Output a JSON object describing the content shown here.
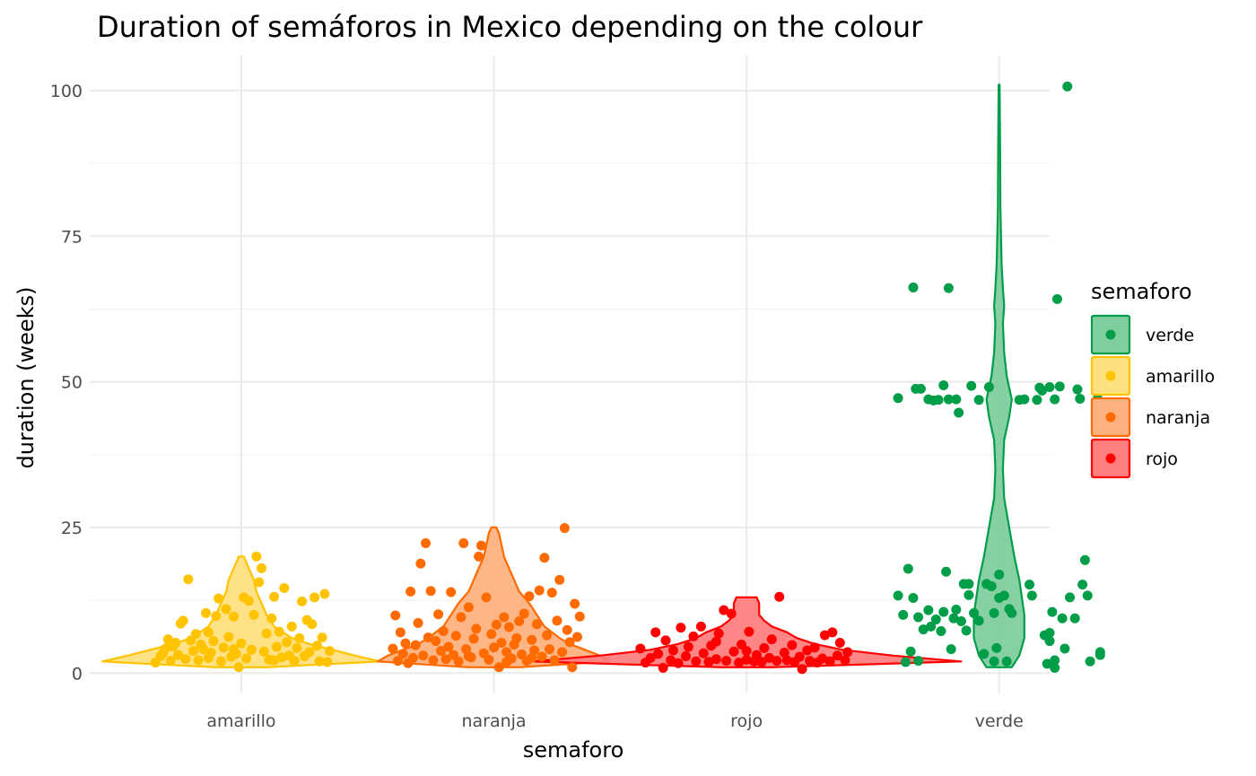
{
  "chart_data": {
    "type": "violin",
    "title": "Duration of semáforos in Mexico depending on the colour",
    "xlabel": "semaforo",
    "ylabel": "duration (weeks)",
    "categories": [
      "amarillo",
      "naranja",
      "rojo",
      "verde"
    ],
    "ylim": [
      -3.5,
      106
    ],
    "yticks": [
      0,
      25,
      50,
      75,
      100
    ],
    "grid": true,
    "legend": {
      "title": "semaforo",
      "placement": "right",
      "items": [
        "verde",
        "amarillo",
        "naranja",
        "rojo"
      ]
    },
    "colors": {
      "amarillo": "#FFC300",
      "naranja": "#FF6B00",
      "rojo": "#FF0000",
      "verde": "#009E49"
    },
    "fill_colors": {
      "amarillo": "#FFE07F",
      "naranja": "#FFB27F",
      "rojo": "#FF7F7F",
      "verde": "#7FCE9F"
    },
    "violins": {
      "amarillo": {
        "y": [
          1,
          2,
          3,
          4,
          5,
          6,
          8,
          10,
          12,
          14,
          16,
          18,
          20
        ],
        "halfwidth": [
          0.1,
          0.55,
          0.45,
          0.36,
          0.27,
          0.2,
          0.13,
          0.1,
          0.08,
          0.06,
          0.05,
          0.03,
          0.01
        ]
      },
      "naranja": {
        "y": [
          1,
          2,
          3,
          4,
          5,
          6,
          8,
          10,
          12,
          14,
          16,
          18,
          20,
          22,
          24,
          25
        ],
        "halfwidth": [
          0.1,
          0.46,
          0.42,
          0.36,
          0.3,
          0.26,
          0.2,
          0.17,
          0.14,
          0.1,
          0.08,
          0.06,
          0.04,
          0.03,
          0.02,
          0.01
        ]
      },
      "rojo": {
        "y": [
          1,
          2,
          3,
          4,
          5,
          6,
          7,
          8,
          9,
          10,
          11,
          12,
          13
        ],
        "halfwidth": [
          0.1,
          0.85,
          0.58,
          0.38,
          0.27,
          0.2,
          0.16,
          0.1,
          0.07,
          0.05,
          0.05,
          0.05,
          0.04
        ]
      },
      "verde": {
        "y": [
          1,
          3,
          6,
          10,
          13,
          16,
          20,
          25,
          30,
          35,
          40,
          44,
          47,
          49,
          51,
          55,
          60,
          63,
          66,
          70,
          80,
          90,
          101
        ],
        "halfwidth": [
          0.05,
          0.08,
          0.1,
          0.1,
          0.09,
          0.08,
          0.06,
          0.04,
          0.02,
          0.015,
          0.02,
          0.04,
          0.05,
          0.04,
          0.03,
          0.02,
          0.015,
          0.02,
          0.015,
          0.01,
          0.005,
          0.004,
          0.002
        ]
      }
    },
    "points": {
      "amarillo": [
        [
          0.66,
          1.8
        ],
        [
          0.68,
          2.9
        ],
        [
          0.69,
          3.4
        ],
        [
          0.7,
          4.2
        ],
        [
          0.71,
          5.8
        ],
        [
          0.72,
          2.1
        ],
        [
          0.73,
          4.6
        ],
        [
          0.74,
          5.2
        ],
        [
          0.75,
          3.1
        ],
        [
          0.76,
          8.5
        ],
        [
          0.77,
          9.0
        ],
        [
          0.78,
          2.4
        ],
        [
          0.79,
          16.1
        ],
        [
          0.8,
          5.6
        ],
        [
          0.81,
          3.8
        ],
        [
          0.82,
          6.7
        ],
        [
          0.83,
          2.2
        ],
        [
          0.84,
          4.9
        ],
        [
          0.85,
          4.1
        ],
        [
          0.86,
          10.3
        ],
        [
          0.87,
          2.6
        ],
        [
          0.88,
          3.5
        ],
        [
          0.89,
          5.5
        ],
        [
          0.9,
          9.8
        ],
        [
          0.91,
          12.8
        ],
        [
          0.92,
          2.0
        ],
        [
          0.93,
          4.4
        ],
        [
          0.94,
          11.0
        ],
        [
          0.95,
          6.2
        ],
        [
          0.96,
          2.8
        ],
        [
          0.97,
          9.7
        ],
        [
          0.98,
          3.3
        ],
        [
          0.99,
          1.0
        ],
        [
          1.0,
          5.1
        ],
        [
          1.01,
          13.0
        ],
        [
          1.02,
          2.5
        ],
        [
          1.03,
          12.4
        ],
        [
          1.04,
          4.0
        ],
        [
          1.05,
          10.0
        ],
        [
          1.06,
          20.0
        ],
        [
          1.07,
          15.6
        ],
        [
          1.08,
          18.0
        ],
        [
          1.09,
          3.7
        ],
        [
          1.1,
          6.8
        ],
        [
          1.11,
          2.3
        ],
        [
          1.12,
          9.4
        ],
        [
          1.13,
          13.1
        ],
        [
          1.14,
          4.5
        ],
        [
          1.15,
          7.1
        ],
        [
          1.16,
          2.7
        ],
        [
          1.17,
          14.6
        ],
        [
          1.18,
          5.3
        ],
        [
          1.19,
          3.0
        ],
        [
          1.2,
          8.0
        ],
        [
          1.21,
          2.1
        ],
        [
          1.22,
          4.3
        ],
        [
          1.23,
          6.0
        ],
        [
          1.24,
          12.3
        ],
        [
          1.25,
          2.9
        ],
        [
          1.26,
          9.1
        ],
        [
          1.27,
          3.6
        ],
        [
          1.28,
          8.4
        ],
        [
          1.29,
          13.0
        ],
        [
          1.3,
          4.7
        ],
        [
          1.31,
          2.0
        ],
        [
          1.32,
          6.1
        ],
        [
          1.33,
          13.6
        ],
        [
          1.34,
          1.9
        ],
        [
          1.35,
          3.8
        ],
        [
          0.87,
          7.0
        ],
        [
          0.97,
          4.1
        ],
        [
          1.13,
          2.2
        ]
      ],
      "naranja": [
        [
          1.6,
          4.2
        ],
        [
          1.61,
          9.9
        ],
        [
          1.62,
          2.1
        ],
        [
          1.63,
          7.0
        ],
        [
          1.64,
          3.3
        ],
        [
          1.65,
          5.1
        ],
        [
          1.66,
          1.7
        ],
        [
          1.67,
          14.0
        ],
        [
          1.68,
          2.6
        ],
        [
          1.69,
          4.8
        ],
        [
          1.7,
          8.6
        ],
        [
          1.71,
          18.8
        ],
        [
          1.72,
          3.0
        ],
        [
          1.73,
          22.3
        ],
        [
          1.74,
          6.1
        ],
        [
          1.75,
          14.1
        ],
        [
          1.76,
          2.2
        ],
        [
          1.77,
          5.5
        ],
        [
          1.78,
          10.1
        ],
        [
          1.79,
          3.8
        ],
        [
          1.8,
          7.2
        ],
        [
          1.81,
          2.4
        ],
        [
          1.82,
          4.5
        ],
        [
          1.83,
          13.9
        ],
        [
          1.84,
          3.1
        ],
        [
          1.85,
          6.4
        ],
        [
          1.86,
          2.0
        ],
        [
          1.87,
          9.6
        ],
        [
          1.88,
          22.3
        ],
        [
          1.89,
          4.1
        ],
        [
          1.9,
          11.3
        ],
        [
          1.91,
          2.7
        ],
        [
          1.92,
          5.9
        ],
        [
          1.93,
          7.6
        ],
        [
          1.94,
          20.0
        ],
        [
          1.95,
          21.9
        ],
        [
          1.96,
          3.4
        ],
        [
          1.97,
          13.0
        ],
        [
          1.98,
          2.3
        ],
        [
          1.99,
          6.7
        ],
        [
          2.0,
          4.4
        ],
        [
          2.01,
          8.3
        ],
        [
          2.02,
          1.0
        ],
        [
          2.03,
          5.2
        ],
        [
          2.04,
          9.6
        ],
        [
          2.05,
          3.6
        ],
        [
          2.06,
          7.9
        ],
        [
          2.07,
          2.5
        ],
        [
          2.08,
          4.9
        ],
        [
          2.09,
          6.0
        ],
        [
          2.1,
          8.9
        ],
        [
          2.11,
          3.2
        ],
        [
          2.12,
          10.2
        ],
        [
          2.13,
          2.1
        ],
        [
          2.14,
          13.2
        ],
        [
          2.15,
          5.7
        ],
        [
          2.16,
          3.9
        ],
        [
          2.17,
          8.4
        ],
        [
          2.18,
          14.2
        ],
        [
          2.19,
          2.8
        ],
        [
          2.2,
          19.8
        ],
        [
          2.21,
          6.5
        ],
        [
          2.22,
          4.1
        ],
        [
          2.23,
          13.8
        ],
        [
          2.24,
          2.2
        ],
        [
          2.25,
          9.0
        ],
        [
          2.26,
          16.0
        ],
        [
          2.27,
          3.6
        ],
        [
          2.28,
          24.9
        ],
        [
          2.29,
          7.4
        ],
        [
          2.3,
          5.3
        ],
        [
          2.31,
          1.0
        ],
        [
          2.32,
          11.9
        ],
        [
          2.33,
          6.2
        ],
        [
          2.34,
          9.7
        ],
        [
          1.9,
          2.9
        ],
        [
          2.05,
          1.9
        ],
        [
          2.15,
          2.6
        ]
      ],
      "rojo": [
        [
          2.58,
          4.2
        ],
        [
          2.6,
          1.8
        ],
        [
          2.62,
          2.6
        ],
        [
          2.64,
          7.0
        ],
        [
          2.65,
          3.3
        ],
        [
          2.67,
          0.9
        ],
        [
          2.68,
          5.6
        ],
        [
          2.7,
          2.2
        ],
        [
          2.71,
          3.9
        ],
        [
          2.73,
          1.7
        ],
        [
          2.74,
          7.8
        ],
        [
          2.76,
          2.9
        ],
        [
          2.77,
          4.5
        ],
        [
          2.79,
          6.3
        ],
        [
          2.8,
          2.0
        ],
        [
          2.82,
          8.0
        ],
        [
          2.83,
          3.4
        ],
        [
          2.85,
          1.9
        ],
        [
          2.86,
          4.7
        ],
        [
          2.88,
          2.4
        ],
        [
          2.89,
          6.8
        ],
        [
          2.91,
          10.8
        ],
        [
          2.92,
          2.1
        ],
        [
          2.94,
          10.2
        ],
        [
          2.95,
          3.7
        ],
        [
          2.97,
          1.8
        ],
        [
          2.98,
          4.9
        ],
        [
          3.0,
          2.3
        ],
        [
          3.01,
          7.1
        ],
        [
          3.03,
          2.0
        ],
        [
          3.04,
          3.1
        ],
        [
          3.06,
          1.9
        ],
        [
          3.07,
          4.3
        ],
        [
          3.09,
          2.6
        ],
        [
          3.1,
          5.8
        ],
        [
          3.12,
          2.1
        ],
        [
          3.13,
          13.1
        ],
        [
          3.15,
          3.5
        ],
        [
          3.16,
          2.2
        ],
        [
          3.18,
          4.8
        ],
        [
          3.19,
          1.9
        ],
        [
          3.21,
          2.8
        ],
        [
          3.22,
          0.7
        ],
        [
          3.24,
          3.9
        ],
        [
          3.25,
          2.1
        ],
        [
          3.27,
          4.4
        ],
        [
          3.28,
          1.8
        ],
        [
          3.3,
          2.5
        ],
        [
          3.31,
          6.5
        ],
        [
          3.33,
          2.0
        ],
        [
          3.34,
          7.0
        ],
        [
          3.36,
          3.0
        ],
        [
          3.37,
          5.2
        ],
        [
          3.39,
          2.2
        ],
        [
          3.4,
          3.6
        ],
        [
          2.88,
          5.4
        ],
        [
          3.0,
          3.8
        ]
      ],
      "verde": [
        [
          3.6,
          47.2
        ],
        [
          3.6,
          13.3
        ],
        [
          3.62,
          10.0
        ],
        [
          3.63,
          1.9
        ],
        [
          3.64,
          17.9
        ],
        [
          3.65,
          3.7
        ],
        [
          3.66,
          66.2
        ],
        [
          3.66,
          12.9
        ],
        [
          3.67,
          48.8
        ],
        [
          3.68,
          2.1
        ],
        [
          3.68,
          9.6
        ],
        [
          3.69,
          48.8
        ],
        [
          3.7,
          7.5
        ],
        [
          3.72,
          47.0
        ],
        [
          3.72,
          10.8
        ],
        [
          3.73,
          8.0
        ],
        [
          3.74,
          46.8
        ],
        [
          3.75,
          9.2
        ],
        [
          3.76,
          46.9
        ],
        [
          3.77,
          7.2
        ],
        [
          3.78,
          49.4
        ],
        [
          3.78,
          10.5
        ],
        [
          3.79,
          17.4
        ],
        [
          3.8,
          47.0
        ],
        [
          3.8,
          66.1
        ],
        [
          3.81,
          4.1
        ],
        [
          3.82,
          9.4
        ],
        [
          3.83,
          47.0
        ],
        [
          3.83,
          10.9
        ],
        [
          3.84,
          44.7
        ],
        [
          3.85,
          8.9
        ],
        [
          3.86,
          15.3
        ],
        [
          3.87,
          7.3
        ],
        [
          3.88,
          15.3
        ],
        [
          3.88,
          13.4
        ],
        [
          3.89,
          49.3
        ],
        [
          3.9,
          10.3
        ],
        [
          3.92,
          46.9
        ],
        [
          3.92,
          9.0
        ],
        [
          3.94,
          3.3
        ],
        [
          3.95,
          15.3
        ],
        [
          3.96,
          49.1
        ],
        [
          3.97,
          14.9
        ],
        [
          3.98,
          2.0
        ],
        [
          3.98,
          10.3
        ],
        [
          3.99,
          4.3
        ],
        [
          4.0,
          16.9
        ],
        [
          4.0,
          12.9
        ],
        [
          4.02,
          13.3
        ],
        [
          4.03,
          2.0
        ],
        [
          4.04,
          11.0
        ],
        [
          4.05,
          10.3
        ],
        [
          4.08,
          46.9
        ],
        [
          4.1,
          47.0
        ],
        [
          4.12,
          15.2
        ],
        [
          4.13,
          13.3
        ],
        [
          4.15,
          46.9
        ],
        [
          4.16,
          49.0
        ],
        [
          4.17,
          48.5
        ],
        [
          4.18,
          6.5
        ],
        [
          4.19,
          1.6
        ],
        [
          4.2,
          49.1
        ],
        [
          4.2,
          6.9
        ],
        [
          4.21,
          10.5
        ],
        [
          4.22,
          47.0
        ],
        [
          4.22,
          0.9
        ],
        [
          4.23,
          64.2
        ],
        [
          4.24,
          49.2
        ],
        [
          4.25,
          9.4
        ],
        [
          4.26,
          4.2
        ],
        [
          4.27,
          100.7
        ],
        [
          4.28,
          13.0
        ],
        [
          4.3,
          9.4
        ],
        [
          4.31,
          48.7
        ],
        [
          4.32,
          47.1
        ],
        [
          4.33,
          15.2
        ],
        [
          4.34,
          19.4
        ],
        [
          4.35,
          13.3
        ],
        [
          4.36,
          2.0
        ],
        [
          4.39,
          47.1
        ],
        [
          4.4,
          3.6
        ],
        [
          4.4,
          3.1
        ],
        [
          4.2,
          5.5
        ],
        [
          4.22,
          2.2
        ]
      ]
    }
  }
}
